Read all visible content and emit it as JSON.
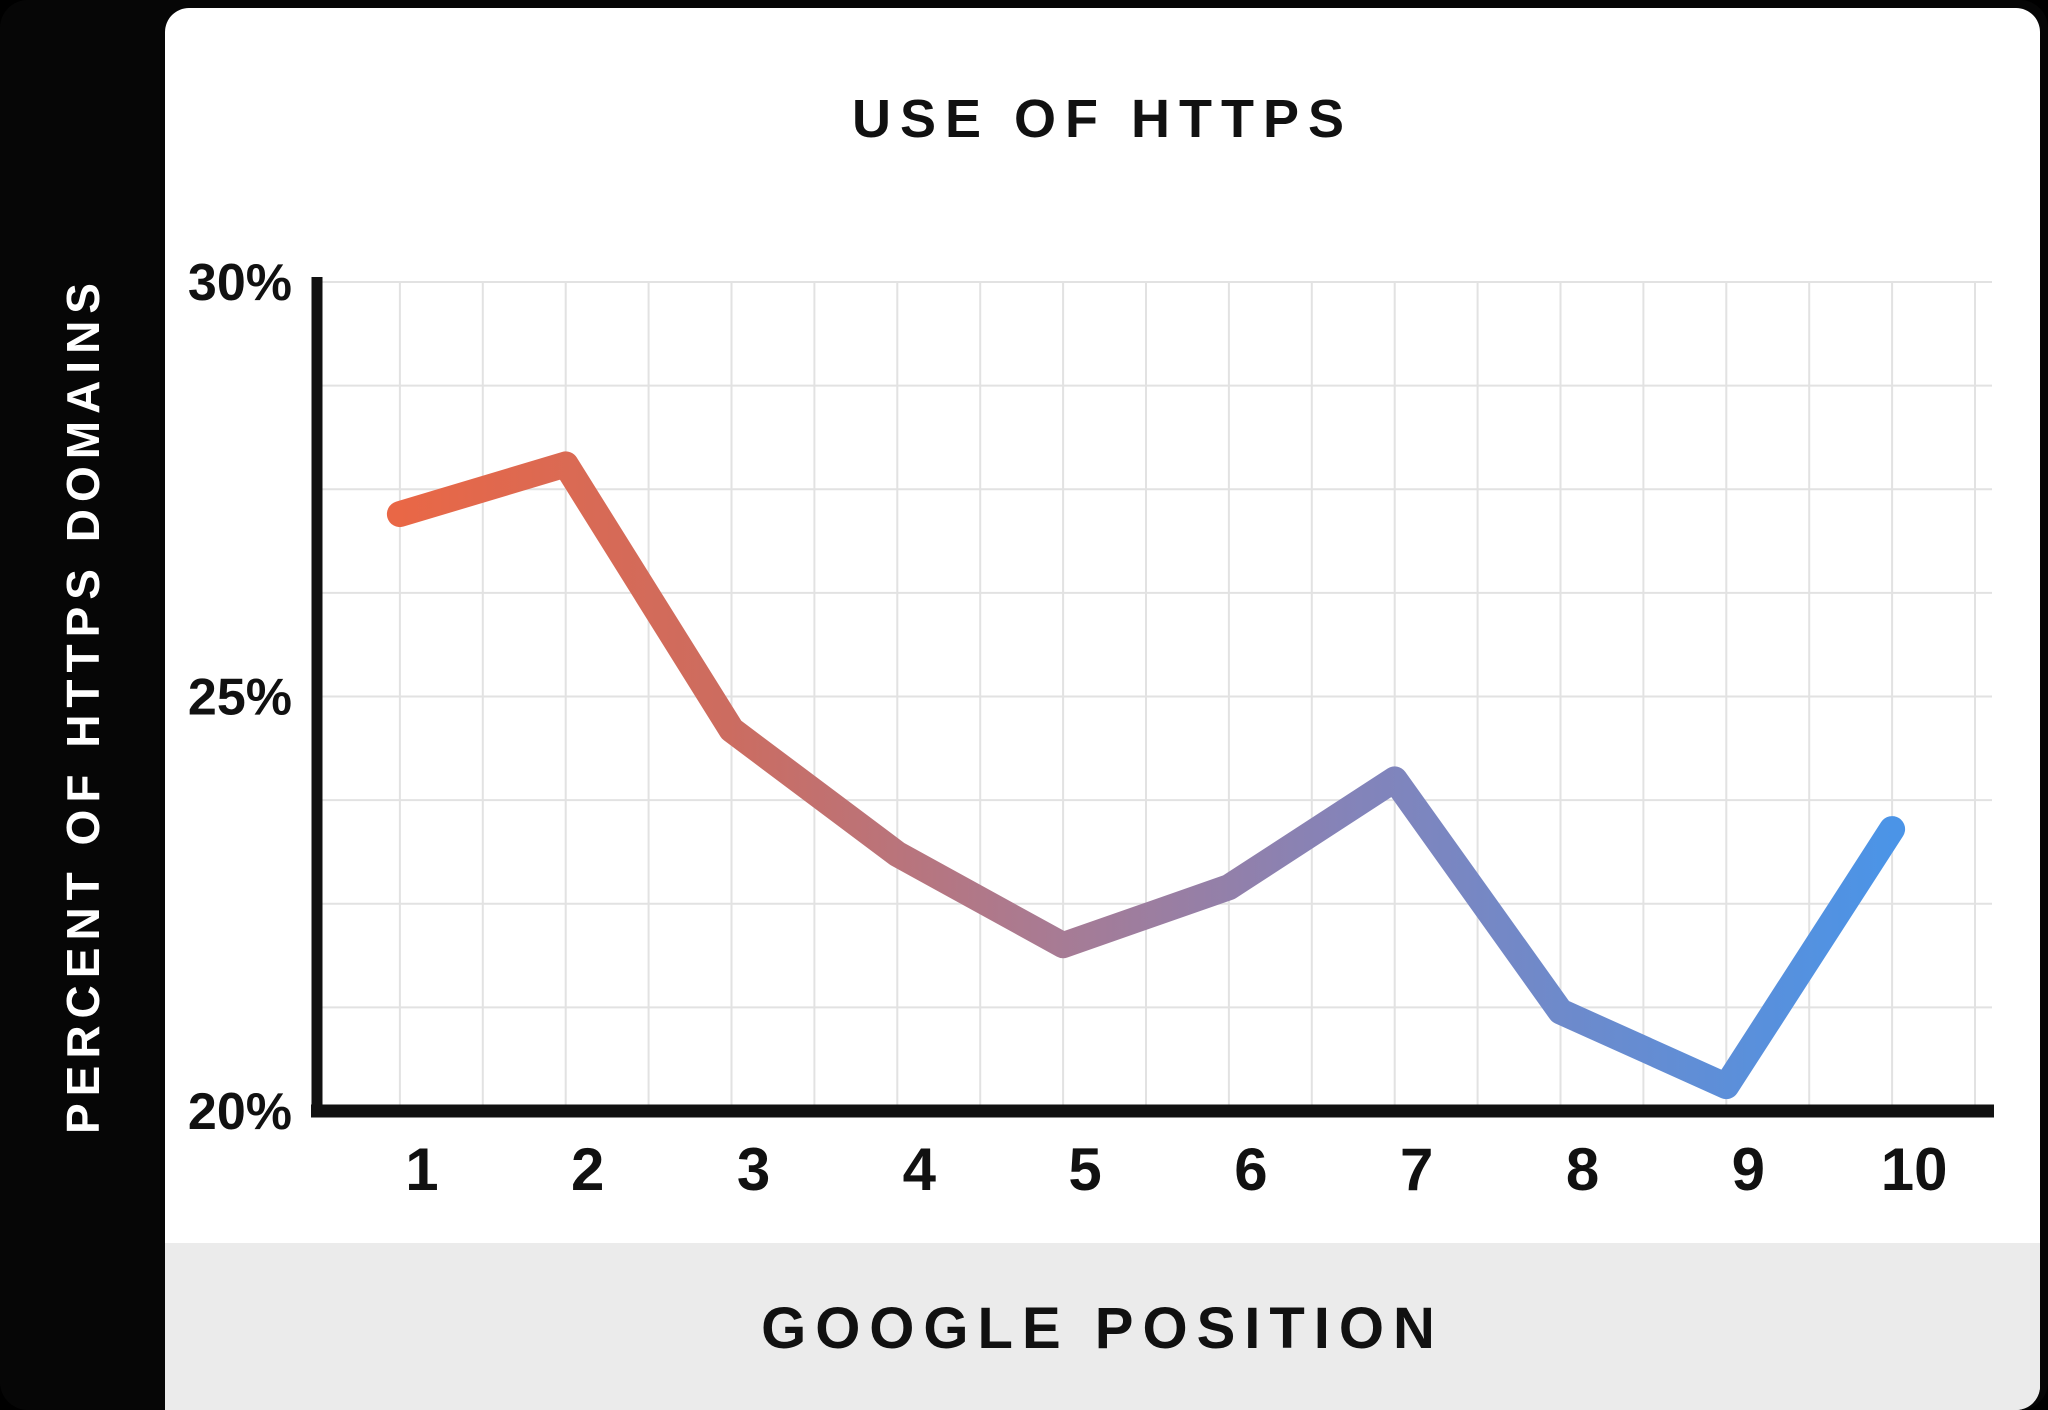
{
  "sidebar": {
    "ylabel": "PERCENT OF HTTPS DOMAINS"
  },
  "header": {
    "title": "USE OF HTTPS"
  },
  "footer": {
    "xlabel": "GOOGLE POSITION"
  },
  "colors": {
    "page_background": "#060606",
    "card_background": "#ffffff",
    "footer_band": "#EBEBEB",
    "gridline": "#E2E2E2",
    "axis": "#111111",
    "text": "#111111",
    "sidebar_text": "#ffffff"
  },
  "chart_data": {
    "type": "line",
    "title": "USE OF HTTPS",
    "xlabel": "GOOGLE POSITION",
    "ylabel": "PERCENT OF HTTPS DOMAINS",
    "categories": [
      "1",
      "2",
      "3",
      "4",
      "5",
      "6",
      "7",
      "8",
      "9",
      "10"
    ],
    "values": [
      27.2,
      27.8,
      24.6,
      23.1,
      22.0,
      22.7,
      24.0,
      21.2,
      20.3,
      23.4
    ],
    "ylim": [
      20,
      30
    ],
    "yticks": [
      {
        "value": 30,
        "label": "30%"
      },
      {
        "value": 25,
        "label": "25%"
      },
      {
        "value": 20,
        "label": "20%"
      }
    ],
    "grid": {
      "on": true,
      "rows": 8,
      "cols": 20
    },
    "legend": {
      "shown": false
    },
    "line_gradient": [
      {
        "offset": 0.0,
        "color": "#E96746"
      },
      {
        "offset": 0.22,
        "color": "#CC6C60"
      },
      {
        "offset": 0.42,
        "color": "#AB7A90"
      },
      {
        "offset": 0.63,
        "color": "#8583B8"
      },
      {
        "offset": 1.0,
        "color": "#4B94E7"
      }
    ]
  }
}
